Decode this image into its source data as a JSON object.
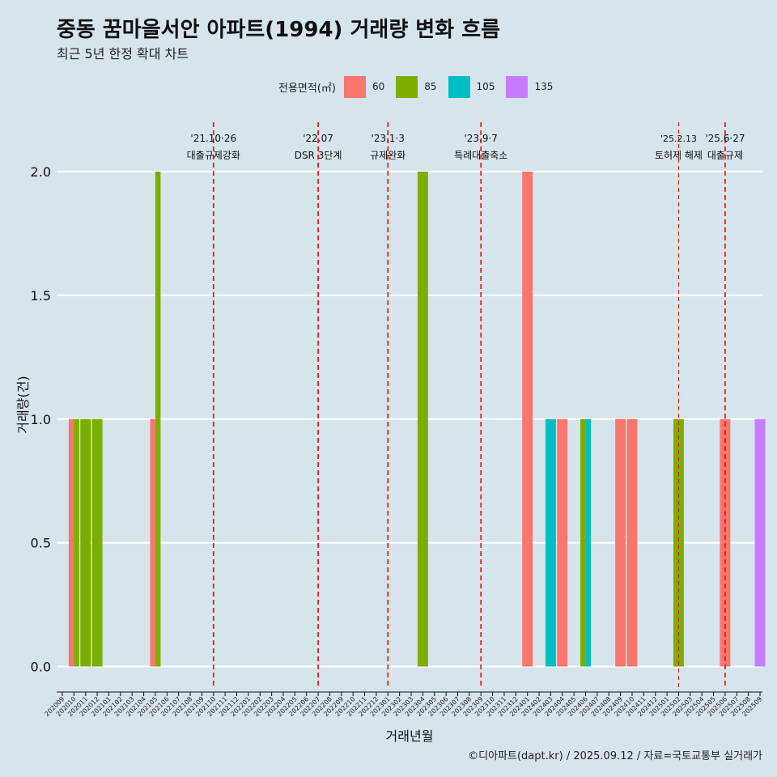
{
  "header": {
    "title": "중동 꿈마을서안 아파트(1994) 거래량 변화 흐름",
    "subtitle": "최근 5년 한정 확대 차트"
  },
  "legend": {
    "title": "전용면적(㎡)",
    "items": [
      {
        "label": "60",
        "color": "#F8766D"
      },
      {
        "label": "85",
        "color": "#7CAE00"
      },
      {
        "label": "105",
        "color": "#00BFC4"
      },
      {
        "label": "135",
        "color": "#C77CFF"
      }
    ]
  },
  "caption": "©디아파트(dapt.kr) / 2025.09.12 / 자료=국토교통부 실거래가",
  "chart_data": {
    "type": "bar",
    "title": "중동 꿈마을서안 아파트(1994) 거래량 변화 흐름",
    "subtitle": "최근 5년 한정 확대 차트",
    "xlabel": "거래년월",
    "ylabel": "거래량(건)",
    "ylim": [
      0,
      2.2
    ],
    "yticks": [
      "0.0",
      "0.5",
      "1.0",
      "1.5",
      "2.0"
    ],
    "ytick_values": [
      0,
      0.5,
      1.0,
      1.5,
      2.0
    ],
    "categories": [
      "202009",
      "202010",
      "202011",
      "202012",
      "202101",
      "202102",
      "202103",
      "202104",
      "202105",
      "202106",
      "202107",
      "202108",
      "202109",
      "202110",
      "202111",
      "202112",
      "202201",
      "202202",
      "202203",
      "202204",
      "202205",
      "202206",
      "202207",
      "202208",
      "202209",
      "202210",
      "202211",
      "202212",
      "202301",
      "202302",
      "202303",
      "202304",
      "202305",
      "202306",
      "202307",
      "202308",
      "202309",
      "202310",
      "202311",
      "202312",
      "202401",
      "202402",
      "202403",
      "202404",
      "202405",
      "202406",
      "202407",
      "202408",
      "202409",
      "202410",
      "202411",
      "202412",
      "202501",
      "202502",
      "202503",
      "202504",
      "202505",
      "202506",
      "202507",
      "202508",
      "202509"
    ],
    "series": [
      {
        "name": "60",
        "color": "#F8766D",
        "points": [
          {
            "x": "202010",
            "y": 1
          },
          {
            "x": "202105",
            "y": 1
          },
          {
            "x": "202401",
            "y": 2
          },
          {
            "x": "202404",
            "y": 1
          },
          {
            "x": "202409",
            "y": 1
          },
          {
            "x": "202410",
            "y": 1
          },
          {
            "x": "202506",
            "y": 1
          }
        ]
      },
      {
        "name": "85",
        "color": "#7CAE00",
        "points": [
          {
            "x": "202010",
            "y": 1
          },
          {
            "x": "202011",
            "y": 1
          },
          {
            "x": "202012",
            "y": 1
          },
          {
            "x": "202105",
            "y": 2
          },
          {
            "x": "202304",
            "y": 2
          },
          {
            "x": "202406",
            "y": 1
          },
          {
            "x": "202502",
            "y": 1
          }
        ]
      },
      {
        "name": "105",
        "color": "#00BFC4",
        "points": [
          {
            "x": "202403",
            "y": 1
          },
          {
            "x": "202406",
            "y": 1
          }
        ]
      },
      {
        "name": "135",
        "color": "#C77CFF",
        "points": [
          {
            "x": "202509",
            "y": 1
          }
        ]
      }
    ],
    "annotations": [
      {
        "x": "202110",
        "date": "'21.10·26",
        "text": "대출규제강화",
        "style": "bold"
      },
      {
        "x": "202207",
        "date": "'22.07",
        "text": "DSR 3단계",
        "style": "bold"
      },
      {
        "x": "202301",
        "date": "'23.1·3",
        "text": "규제완화",
        "style": "bold"
      },
      {
        "x": "202309",
        "date": "'23.9·7",
        "text": "특례대출축소",
        "style": "bold"
      },
      {
        "x": "202502",
        "date": "'25.2.13",
        "text": "토허제 해제",
        "style": "thin"
      },
      {
        "x": "202506",
        "date": "'25.6·27",
        "text": "대출규제",
        "style": "bold"
      }
    ]
  }
}
